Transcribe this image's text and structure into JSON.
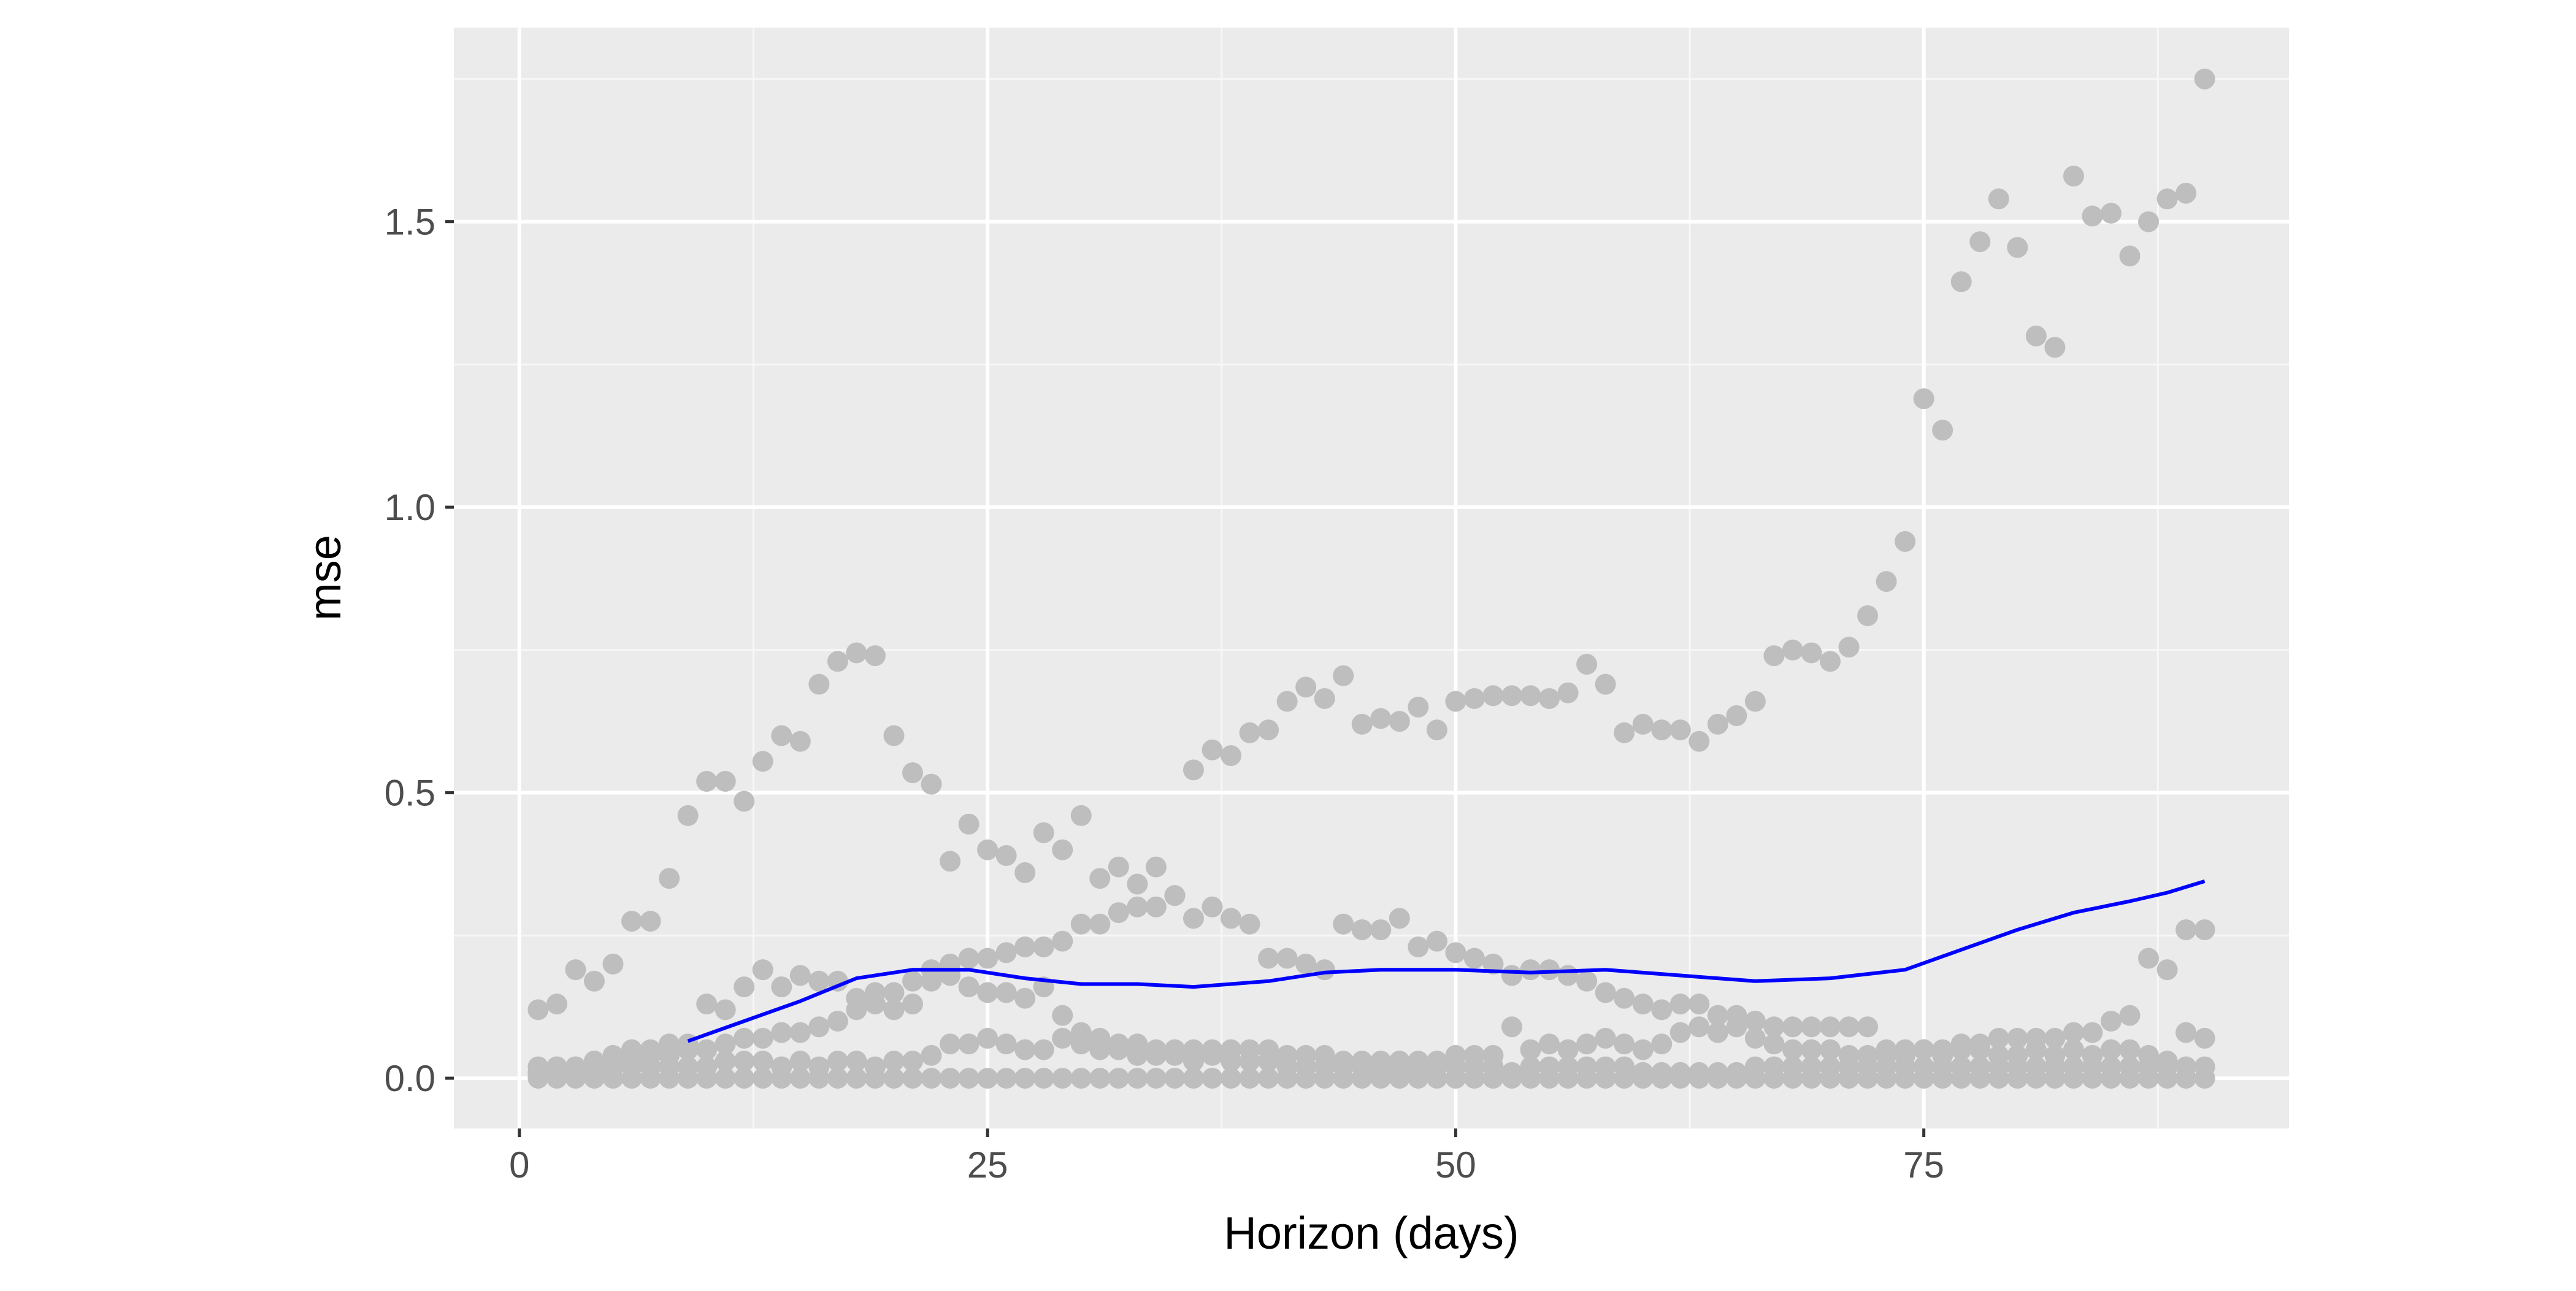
{
  "chart_data": {
    "type": "scatter",
    "title": "",
    "xlabel": "Horizon (days)",
    "ylabel": "mse",
    "xlim": [
      -3.5,
      94.5
    ],
    "ylim": [
      -0.088,
      1.84
    ],
    "x_ticks": [
      0,
      25,
      50,
      75
    ],
    "x_tick_labels": [
      "0",
      "25",
      "50",
      "75"
    ],
    "y_ticks": [
      0.0,
      0.5,
      1.0,
      1.5
    ],
    "y_tick_labels": [
      "0.0",
      "0.5",
      "1.0",
      "1.5"
    ],
    "grid": true,
    "legend": "none",
    "colors": {
      "panel_background": "#ebebeb",
      "grid_major": "#ffffff",
      "grid_minor": "#f7f7f7",
      "points": "#bebebe",
      "smooth_line": "#0000ff"
    },
    "series": [
      {
        "type": "scatter",
        "x": [
          1,
          2,
          3,
          4,
          5,
          6,
          7,
          8,
          9,
          10,
          11,
          12,
          13,
          14,
          15,
          16,
          17,
          18,
          19,
          20,
          21,
          22,
          23,
          24,
          25,
          26,
          27,
          28,
          29,
          30,
          31,
          32,
          33,
          34,
          35,
          36,
          37,
          38,
          39,
          40,
          41,
          42,
          43,
          44,
          45,
          46,
          47,
          48,
          49,
          50,
          51,
          52,
          53,
          54,
          55,
          56,
          57,
          58,
          59,
          60,
          61,
          62,
          63,
          64,
          65,
          66,
          67,
          68,
          69,
          70,
          71,
          72,
          73,
          74,
          75,
          76,
          77,
          78,
          79,
          80,
          81,
          82,
          83,
          84,
          85,
          86,
          87,
          88,
          89,
          90
        ],
        "y": [
          0.12,
          0.13,
          0.19,
          0.17,
          0.2,
          0.275,
          0.275,
          0.35,
          0.46,
          0.52,
          0.52,
          0.485,
          0.555,
          0.6,
          0.59,
          0.69,
          0.73,
          0.745,
          0.74,
          0.6,
          0.535,
          0.515,
          0.38,
          0.445,
          0.4,
          0.39,
          0.36,
          0.43,
          0.4,
          0.46,
          0.35,
          0.37,
          0.34,
          0.37,
          0.32,
          0.54,
          0.575,
          0.565,
          0.605,
          0.61,
          0.66,
          0.685,
          0.665,
          0.705,
          0.62,
          0.63,
          0.625,
          0.65,
          0.61,
          0.66,
          0.665,
          0.67,
          0.67,
          0.67,
          0.665,
          0.675,
          0.725,
          0.69,
          0.605,
          0.62,
          0.61,
          0.61,
          0.59,
          0.62,
          0.635,
          0.66,
          0.74,
          0.75,
          0.745,
          0.73,
          0.755,
          0.81,
          0.87,
          0.94,
          1.19,
          1.135,
          1.395,
          1.465,
          1.54,
          1.455,
          1.3,
          1.28,
          1.58,
          1.51,
          1.515,
          1.44,
          1.5,
          1.54,
          1.55,
          1.75
        ]
      },
      {
        "type": "scatter",
        "x": [
          1,
          2,
          3,
          4,
          5,
          6,
          7,
          8,
          9,
          10,
          11,
          12,
          13,
          14,
          15,
          16,
          17,
          18,
          19,
          20,
          21,
          22,
          23,
          24,
          25,
          26,
          27,
          28,
          29,
          30,
          31,
          32,
          33,
          34,
          35,
          36,
          37,
          38,
          39,
          40,
          41,
          42,
          43,
          44,
          45,
          46,
          47,
          48,
          49,
          50,
          51,
          52,
          53,
          54,
          55,
          56,
          57,
          58,
          59,
          60,
          61,
          62,
          63,
          64,
          65,
          66,
          67,
          68,
          69,
          70,
          71,
          72,
          73,
          74,
          75,
          76,
          77,
          78,
          79,
          80,
          81,
          82,
          83,
          84,
          85,
          86,
          87,
          88,
          89,
          90
        ],
        "y": [
          0.02,
          0.02,
          0.02,
          0.03,
          0.04,
          0.05,
          0.05,
          0.06,
          0.06,
          0.13,
          0.12,
          0.16,
          0.19,
          0.16,
          0.18,
          0.17,
          0.17,
          0.14,
          0.15,
          0.15,
          0.17,
          0.19,
          0.2,
          0.21,
          0.21,
          0.22,
          0.23,
          0.23,
          0.24,
          0.27,
          0.27,
          0.29,
          0.3,
          0.3,
          0.32,
          0.28,
          0.3,
          0.28,
          0.27,
          0.21,
          0.21,
          0.2,
          0.19,
          0.27,
          0.26,
          0.26,
          0.28,
          0.23,
          0.24,
          0.22,
          0.21,
          0.2,
          0.18,
          0.19,
          0.19,
          0.18,
          0.17,
          0.15,
          0.14,
          0.13,
          0.12,
          0.13,
          0.13,
          0.11,
          0.11,
          0.1,
          0.09,
          0.09,
          0.09,
          0.09,
          0.09,
          0.09,
          0.05,
          0.05,
          0.05,
          0.05,
          0.06,
          0.06,
          0.07,
          0.07,
          0.07,
          0.07,
          0.08,
          0.08,
          0.1,
          0.11,
          0.21,
          0.19,
          0.26,
          0.26
        ]
      },
      {
        "type": "scatter",
        "x": [
          1,
          2,
          3,
          4,
          5,
          6,
          7,
          8,
          9,
          10,
          11,
          12,
          13,
          14,
          15,
          16,
          17,
          18,
          19,
          20,
          21,
          22,
          23,
          24,
          25,
          26,
          27,
          28,
          29,
          30,
          31,
          32,
          33,
          34,
          35,
          36,
          37,
          38,
          39,
          40,
          41,
          42,
          43,
          44,
          45,
          46,
          47,
          48,
          49,
          50,
          51,
          52,
          53,
          54,
          55,
          56,
          57,
          58,
          59,
          60,
          61,
          62,
          63,
          64,
          65,
          66,
          67,
          68,
          69,
          70,
          71,
          72,
          73,
          74,
          75,
          76,
          77,
          78,
          79,
          80,
          81,
          82,
          83,
          84,
          85,
          86,
          87,
          88,
          89,
          90
        ],
        "y": [
          0.01,
          0.02,
          0.02,
          0.03,
          0.03,
          0.03,
          0.04,
          0.04,
          0.05,
          0.05,
          0.06,
          0.07,
          0.07,
          0.08,
          0.08,
          0.09,
          0.1,
          0.12,
          0.13,
          0.12,
          0.13,
          0.17,
          0.18,
          0.16,
          0.15,
          0.15,
          0.14,
          0.16,
          0.11,
          0.08,
          0.07,
          0.06,
          0.06,
          0.05,
          0.05,
          0.05,
          0.05,
          0.05,
          0.05,
          0.05,
          0.04,
          0.04,
          0.04,
          0.03,
          0.03,
          0.03,
          0.03,
          0.03,
          0.03,
          0.04,
          0.04,
          0.04,
          0.09,
          0.05,
          0.06,
          0.05,
          0.06,
          0.07,
          0.06,
          0.05,
          0.06,
          0.08,
          0.09,
          0.08,
          0.09,
          0.07,
          0.06,
          0.05,
          0.05,
          0.05,
          0.04,
          0.04,
          0.04,
          0.04,
          0.05,
          0.04,
          0.05,
          0.05,
          0.04,
          0.04,
          0.05,
          0.04,
          0.05,
          0.04,
          0.05,
          0.05,
          0.04,
          0.03,
          0.08,
          0.07
        ]
      },
      {
        "type": "scatter",
        "x": [
          1,
          2,
          3,
          4,
          5,
          6,
          7,
          8,
          9,
          10,
          11,
          12,
          13,
          14,
          15,
          16,
          17,
          18,
          19,
          20,
          21,
          22,
          23,
          24,
          25,
          26,
          27,
          28,
          29,
          30,
          31,
          32,
          33,
          34,
          35,
          36,
          37,
          38,
          39,
          40,
          41,
          42,
          43,
          44,
          45,
          46,
          47,
          48,
          49,
          50,
          51,
          52,
          53,
          54,
          55,
          56,
          57,
          58,
          59,
          60,
          61,
          62,
          63,
          64,
          65,
          66,
          67,
          68,
          69,
          70,
          71,
          72,
          73,
          74,
          75,
          76,
          77,
          78,
          79,
          80,
          81,
          82,
          83,
          84,
          85,
          86,
          87,
          88,
          89,
          90
        ],
        "y": [
          0.005,
          0.01,
          0.01,
          0.01,
          0.02,
          0.02,
          0.02,
          0.02,
          0.02,
          0.02,
          0.03,
          0.03,
          0.03,
          0.02,
          0.03,
          0.02,
          0.03,
          0.03,
          0.02,
          0.03,
          0.03,
          0.04,
          0.06,
          0.06,
          0.07,
          0.06,
          0.05,
          0.05,
          0.07,
          0.06,
          0.05,
          0.05,
          0.04,
          0.04,
          0.04,
          0.03,
          0.04,
          0.03,
          0.03,
          0.03,
          0.02,
          0.02,
          0.02,
          0.02,
          0.02,
          0.01,
          0.02,
          0.01,
          0.02,
          0.02,
          0.02,
          0.02,
          0.01,
          0.02,
          0.02,
          0.02,
          0.02,
          0.02,
          0.02,
          0.01,
          0.01,
          0.01,
          0.01,
          0.01,
          0.01,
          0.02,
          0.02,
          0.02,
          0.02,
          0.02,
          0.02,
          0.02,
          0.02,
          0.02,
          0.02,
          0.02,
          0.02,
          0.02,
          0.02,
          0.02,
          0.02,
          0.02,
          0.02,
          0.02,
          0.02,
          0.02,
          0.02,
          0.02,
          0.02,
          0.02
        ]
      },
      {
        "type": "scatter",
        "x": [
          1,
          2,
          3,
          4,
          5,
          6,
          7,
          8,
          9,
          10,
          11,
          12,
          13,
          14,
          15,
          16,
          17,
          18,
          19,
          20,
          21,
          22,
          23,
          24,
          25,
          26,
          27,
          28,
          29,
          30,
          31,
          32,
          33,
          34,
          35,
          36,
          37,
          38,
          39,
          40,
          41,
          42,
          43,
          44,
          45,
          46,
          47,
          48,
          49,
          50,
          51,
          52,
          53,
          54,
          55,
          56,
          57,
          58,
          59,
          60,
          61,
          62,
          63,
          64,
          65,
          66,
          67,
          68,
          69,
          70,
          71,
          72,
          73,
          74,
          75,
          76,
          77,
          78,
          79,
          80,
          81,
          82,
          83,
          84,
          85,
          86,
          87,
          88,
          89,
          90
        ],
        "y": [
          0.0,
          0.0,
          0.0,
          0.0,
          0.0,
          0.0,
          0.0,
          0.0,
          0.0,
          0.0,
          0.0,
          0.0,
          0.0,
          0.0,
          0.0,
          0.0,
          0.0,
          0.0,
          0.0,
          0.0,
          0.0,
          0.0,
          0.0,
          0.0,
          0.0,
          0.0,
          0.0,
          0.0,
          0.0,
          0.0,
          0.0,
          0.0,
          0.0,
          0.0,
          0.0,
          0.0,
          0.0,
          0.0,
          0.0,
          0.0,
          0.0,
          0.0,
          0.0,
          0.0,
          0.0,
          0.0,
          0.0,
          0.0,
          0.0,
          0.0,
          0.0,
          0.0,
          0.0,
          0.0,
          0.0,
          0.0,
          0.0,
          0.0,
          0.0,
          0.0,
          0.0,
          0.0,
          0.0,
          0.0,
          0.0,
          0.0,
          0.0,
          0.0,
          0.0,
          0.0,
          0.0,
          0.0,
          0.0,
          0.0,
          0.0,
          0.0,
          0.0,
          0.0,
          0.0,
          0.0,
          0.0,
          0.0,
          0.0,
          0.0,
          0.0,
          0.0,
          0.0,
          0.0,
          0.0,
          0.0
        ]
      },
      {
        "type": "line",
        "x": [
          9,
          12,
          15,
          18,
          21,
          24,
          27,
          30,
          33,
          36,
          40,
          43,
          46,
          50,
          54,
          58,
          62,
          66,
          70,
          74,
          77,
          80,
          83,
          86,
          88,
          90
        ],
        "y": [
          0.065,
          0.1,
          0.135,
          0.175,
          0.19,
          0.19,
          0.175,
          0.165,
          0.165,
          0.16,
          0.17,
          0.185,
          0.19,
          0.19,
          0.185,
          0.19,
          0.18,
          0.17,
          0.175,
          0.19,
          0.225,
          0.26,
          0.29,
          0.31,
          0.325,
          0.345
        ]
      }
    ]
  }
}
